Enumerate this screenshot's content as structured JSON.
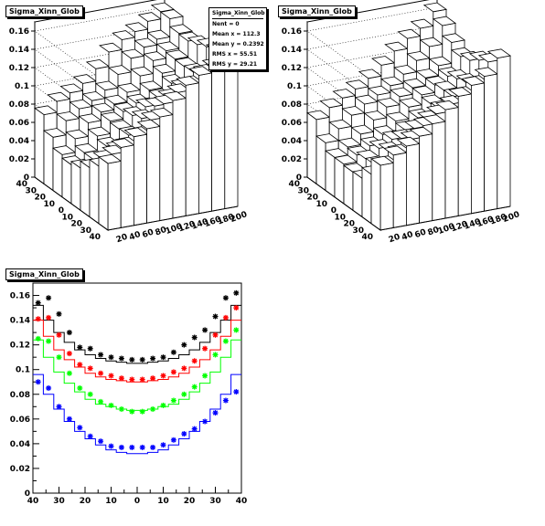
{
  "pads": {
    "top_left": {
      "title": "Sigma_Xinn_Glob"
    },
    "top_right": {
      "title": "Sigma_Xinn_Glob"
    },
    "bottom": {
      "title": "Sigma_Xinn_Glob"
    }
  },
  "stats": {
    "title": "Sigma_Xinn_Glob",
    "entries": "Nent = 0",
    "mean_x": "Mean x = 112.3",
    "mean_y": "Mean y = 0.2392",
    "rms_x": "RMS x = 55.51",
    "rms_y": "RMS y = 29.21"
  },
  "axes3d": {
    "z_ticks": [
      "0",
      "0.02",
      "0.04",
      "0.06",
      "0.08",
      "0.1",
      "0.12",
      "0.14",
      "0.16"
    ],
    "x_ticks": [
      "20",
      "40",
      "60",
      "80",
      "100",
      "120",
      "140",
      "160",
      "180",
      "200"
    ],
    "y_ticks": [
      "40",
      "30",
      "20",
      "10",
      "0",
      "10",
      "20",
      "30",
      "40"
    ]
  },
  "chart_data": [
    {
      "type": "lego3d",
      "name": "top_left",
      "title": "Sigma_Xinn_Glob",
      "xlim": [
        0,
        200
      ],
      "ylim": [
        -40,
        40
      ],
      "zlim": [
        0,
        0.17
      ],
      "z_ticks": [
        0,
        0.02,
        0.04,
        0.06,
        0.08,
        0.1,
        0.12,
        0.14,
        0.16
      ],
      "description_values": "per y-row heights rising with x from ~0.04 to ~0.16"
    },
    {
      "type": "lego3d",
      "name": "top_right",
      "title": "Sigma_Xinn_Glob",
      "xlim": [
        0,
        200
      ],
      "ylim": [
        -40,
        40
      ],
      "zlim": [
        0,
        0.17
      ]
    },
    {
      "type": "line",
      "name": "bottom",
      "title": "Sigma_Xinn_Glob",
      "xlim": [
        -40,
        40
      ],
      "ylim": [
        0,
        0.17
      ],
      "x_tick_labels": [
        "40",
        "30",
        "20",
        "10",
        "0",
        "10",
        "20",
        "30",
        "40"
      ],
      "x_tick_values": [
        -40,
        -30,
        -20,
        -10,
        0,
        10,
        20,
        30,
        40
      ],
      "y_ticks": [
        0,
        0.02,
        0.04,
        0.06,
        0.08,
        0.1,
        0.12,
        0.14,
        0.16
      ],
      "y_tick_labels": [
        "0",
        "0.02",
        "0.04",
        "0.06",
        "0.08",
        "0.1",
        "0.12",
        "0.14",
        "0.16"
      ],
      "x": [
        -38,
        -34,
        -30,
        -26,
        -22,
        -18,
        -14,
        -10,
        -6,
        -2,
        2,
        6,
        10,
        14,
        18,
        22,
        26,
        30,
        34,
        38
      ],
      "series": [
        {
          "color": "#000000",
          "hist": [
            0.152,
            0.14,
            0.13,
            0.122,
            0.116,
            0.112,
            0.109,
            0.107,
            0.106,
            0.105,
            0.105,
            0.106,
            0.107,
            0.109,
            0.112,
            0.116,
            0.122,
            0.13,
            0.14,
            0.152
          ],
          "points": [
            0.154,
            0.158,
            0.145,
            0.13,
            0.118,
            0.117,
            0.112,
            0.11,
            0.109,
            0.108,
            0.108,
            0.109,
            0.11,
            0.114,
            0.12,
            0.126,
            0.132,
            0.143,
            0.158,
            0.162
          ]
        },
        {
          "color": "#ff0000",
          "hist": [
            0.14,
            0.127,
            0.116,
            0.108,
            0.102,
            0.097,
            0.094,
            0.092,
            0.091,
            0.09,
            0.09,
            0.091,
            0.092,
            0.094,
            0.097,
            0.102,
            0.108,
            0.116,
            0.127,
            0.14
          ],
          "points": [
            0.141,
            0.142,
            0.128,
            0.113,
            0.104,
            0.101,
            0.097,
            0.095,
            0.093,
            0.092,
            0.092,
            0.093,
            0.095,
            0.098,
            0.101,
            0.107,
            0.117,
            0.128,
            0.142,
            0.15
          ]
        },
        {
          "color": "#00ff00",
          "hist": [
            0.124,
            0.11,
            0.098,
            0.089,
            0.082,
            0.076,
            0.072,
            0.07,
            0.068,
            0.067,
            0.067,
            0.068,
            0.07,
            0.072,
            0.076,
            0.082,
            0.089,
            0.098,
            0.11,
            0.124
          ],
          "points": [
            0.125,
            0.123,
            0.11,
            0.097,
            0.085,
            0.08,
            0.074,
            0.071,
            0.068,
            0.066,
            0.066,
            0.068,
            0.071,
            0.075,
            0.08,
            0.086,
            0.095,
            0.112,
            0.123,
            0.132
          ]
        },
        {
          "color": "#0000ff",
          "hist": [
            0.096,
            0.08,
            0.068,
            0.058,
            0.05,
            0.044,
            0.039,
            0.035,
            0.033,
            0.032,
            0.032,
            0.033,
            0.035,
            0.039,
            0.044,
            0.05,
            0.058,
            0.068,
            0.08,
            0.096
          ],
          "points": [
            0.09,
            0.085,
            0.07,
            0.06,
            0.053,
            0.046,
            0.042,
            0.038,
            0.037,
            0.037,
            0.037,
            0.037,
            0.039,
            0.043,
            0.048,
            0.052,
            0.058,
            0.065,
            0.075,
            0.082
          ]
        }
      ]
    }
  ]
}
